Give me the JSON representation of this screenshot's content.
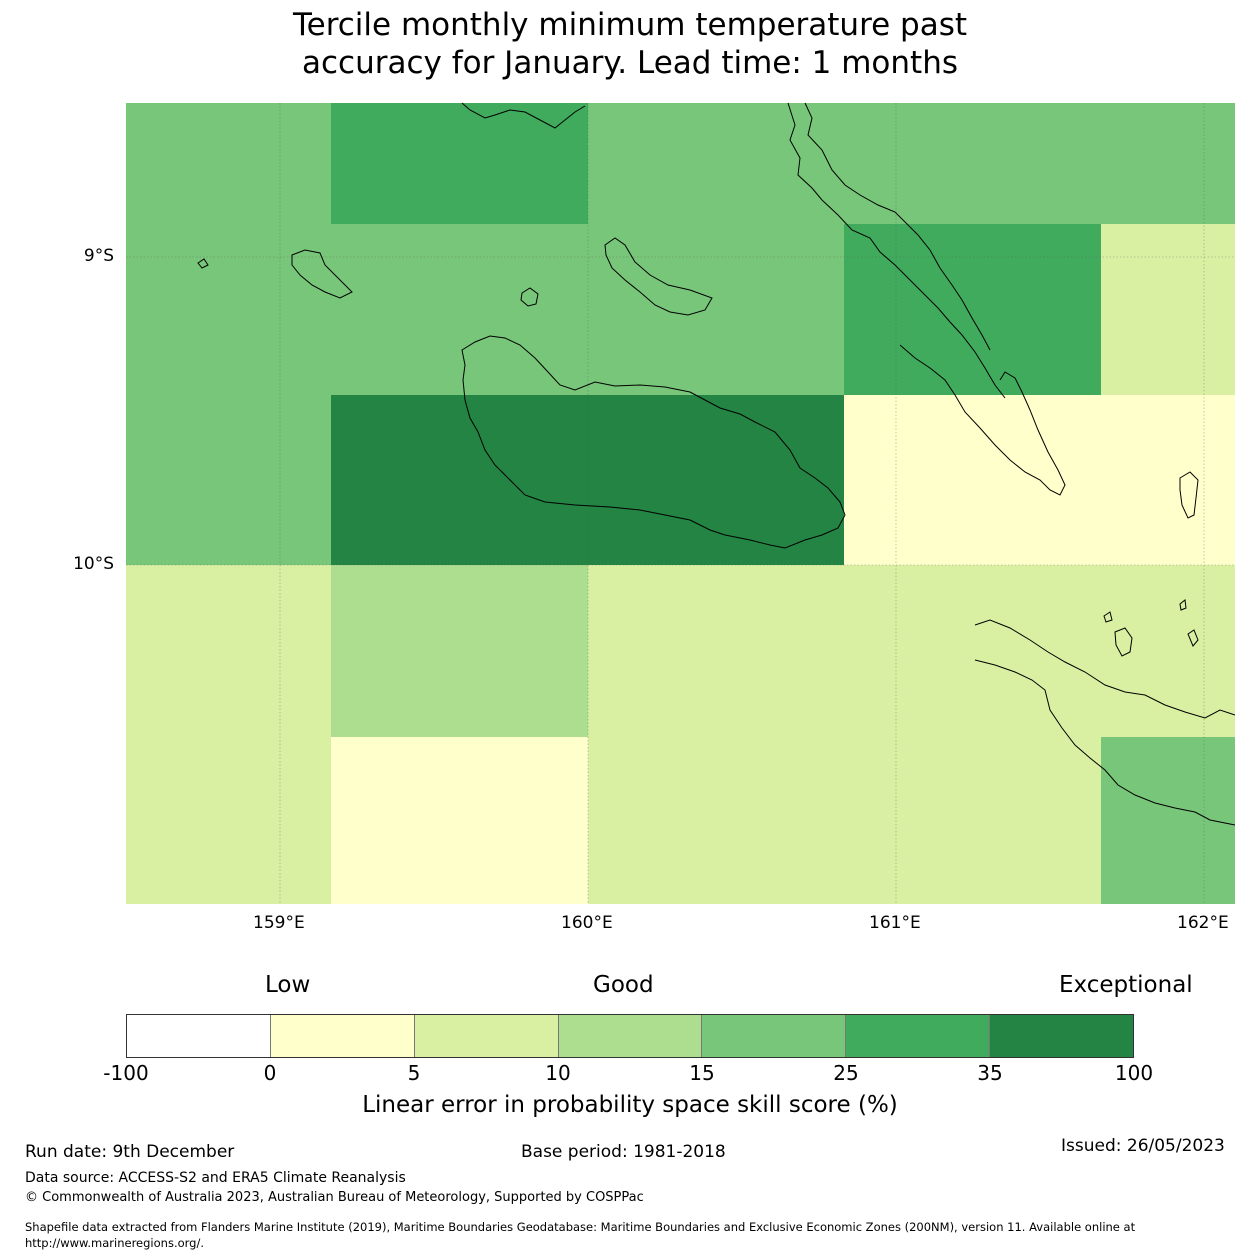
{
  "title": {
    "line1": "Tercile monthly minimum temperature past",
    "line2": "accuracy for January. Lead time: 1 months"
  },
  "map": {
    "lat_labels": [
      "9°S",
      "10°S"
    ],
    "lon_labels": [
      "159°E",
      "160°E",
      "161°E",
      "162°E"
    ],
    "skill_grid_percent": [
      [
        15,
        25,
        15,
        15,
        15
      ],
      [
        15,
        15,
        15,
        25,
        5
      ],
      [
        15,
        35,
        35,
        0,
        0
      ],
      [
        5,
        10,
        5,
        5,
        5
      ],
      [
        5,
        0,
        5,
        5,
        15
      ]
    ]
  },
  "legend": {
    "categories": {
      "low": "Low",
      "good": "Good",
      "exceptional": "Exceptional"
    },
    "bins": [
      {
        "from": -100,
        "to": 0,
        "color": "#ffffff"
      },
      {
        "from": 0,
        "to": 5,
        "color": "#ffffcc"
      },
      {
        "from": 5,
        "to": 10,
        "color": "#d9f0a3"
      },
      {
        "from": 10,
        "to": 15,
        "color": "#addd8e"
      },
      {
        "from": 15,
        "to": 25,
        "color": "#78c679"
      },
      {
        "from": 25,
        "to": 35,
        "color": "#41ab5d"
      },
      {
        "from": 35,
        "to": 100,
        "color": "#238443"
      }
    ],
    "ticks": [
      "-100",
      "0",
      "5",
      "10",
      "15",
      "25",
      "35",
      "100"
    ],
    "label": "Linear error in probability space skill score (%)"
  },
  "footer": {
    "run_date": "Run date: 9th December",
    "base_period": "Base period: 1981-2018",
    "issued": "Issued: 26/05/2023",
    "data_source": "Data source: ACCESS-S2 and ERA5 Climate Reanalysis",
    "copyright": "© Commonwealth of Australia 2023, Australian Bureau of Meteorology, Supported by COSPPac",
    "shapefile_line1": "Shapefile data extracted from Flanders Marine Institute (2019), Maritime Boundaries Geodatabase: Maritime Boundaries and Exclusive Economic Zones (200NM), version 11. Available online at",
    "shapefile_line2": "http://www.marineregions.org/."
  }
}
